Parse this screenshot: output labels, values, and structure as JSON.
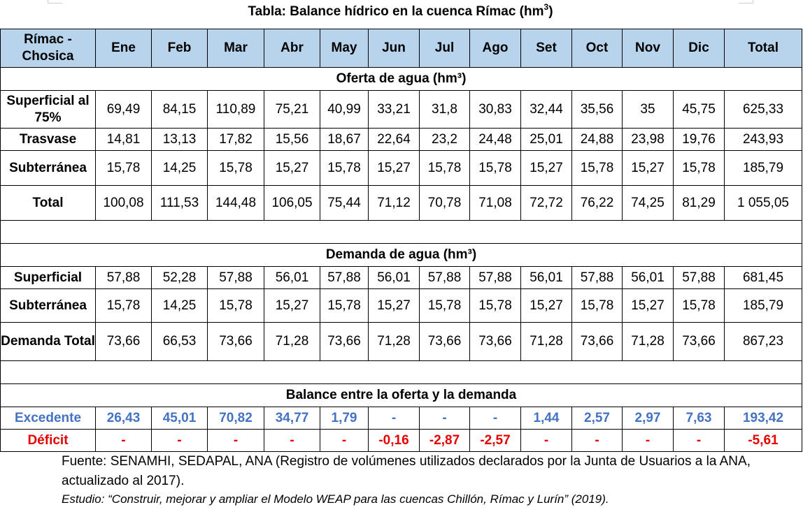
{
  "title": {
    "text": "Tabla: Balance hídrico en la cuenca Rímac (hm",
    "sup": "3",
    "close": ")"
  },
  "header": {
    "corner_label": "Rímac - Chosica",
    "months": [
      "Ene",
      "Feb",
      "Mar",
      "Abr",
      "May",
      "Jun",
      "Jul",
      "Ago",
      "Set",
      "Oct",
      "Nov",
      "Dic"
    ],
    "total_label": "Total"
  },
  "oferta": {
    "title": "Oferta de agua (hm³)",
    "rows": [
      {
        "label": "Superficial al 75%",
        "values": [
          "69,49",
          "84,15",
          "110,89",
          "75,21",
          "40,99",
          "33,21",
          "31,8",
          "30,83",
          "32,44",
          "35,56",
          "35",
          "45,75",
          "625,33"
        ]
      },
      {
        "label": "Trasvase",
        "values": [
          "14,81",
          "13,13",
          "17,82",
          "15,56",
          "18,67",
          "22,64",
          "23,2",
          "24,48",
          "25,01",
          "24,88",
          "23,98",
          "19,76",
          "243,93"
        ]
      },
      {
        "label": "Subterránea",
        "values": [
          "15,78",
          "14,25",
          "15,78",
          "15,27",
          "15,78",
          "15,27",
          "15,78",
          "15,78",
          "15,27",
          "15,78",
          "15,27",
          "15,78",
          "185,79"
        ]
      },
      {
        "label": "Total",
        "values": [
          "100,08",
          "111,53",
          "144,48",
          "106,05",
          "75,44",
          "71,12",
          "70,78",
          "71,08",
          "72,72",
          "76,22",
          "74,25",
          "81,29",
          "1 055,05"
        ]
      }
    ]
  },
  "demanda": {
    "title": "Demanda de agua (hm³)",
    "rows": [
      {
        "label": "Superficial",
        "values": [
          "57,88",
          "52,28",
          "57,88",
          "56,01",
          "57,88",
          "56,01",
          "57,88",
          "57,88",
          "56,01",
          "57,88",
          "56,01",
          "57,88",
          "681,45"
        ]
      },
      {
        "label": "Subterránea",
        "values": [
          "15,78",
          "14,25",
          "15,78",
          "15,27",
          "15,78",
          "15,27",
          "15,78",
          "15,78",
          "15,27",
          "15,78",
          "15,27",
          "15,78",
          "185,79"
        ]
      },
      {
        "label": "Demanda Total",
        "values": [
          "73,66",
          "66,53",
          "73,66",
          "71,28",
          "73,66",
          "71,28",
          "73,66",
          "73,66",
          "71,28",
          "73,66",
          "71,28",
          "73,66",
          "867,23"
        ]
      }
    ]
  },
  "balance": {
    "title": "Balance entre la oferta y la demanda",
    "excedente": {
      "label": "Excedente",
      "values": [
        "26,43",
        "45,01",
        "70,82",
        "34,77",
        "1,79",
        "-",
        "-",
        "-",
        "1,44",
        "2,57",
        "2,97",
        "7,63",
        "193,42"
      ]
    },
    "deficit": {
      "label": "Déficit",
      "values": [
        "-",
        "-",
        "-",
        "-",
        "-",
        "-0,16",
        "-2,87",
        "-2,57",
        "-",
        "-",
        "-",
        "-",
        "-5,61"
      ]
    }
  },
  "colors": {
    "header_bg": "#b8d4ec",
    "excedente": "#4472c4",
    "deficit": "#e60000"
  },
  "footer": {
    "source": "Fuente: SENAMHI, SEDAPAL, ANA (Registro de volúmenes utilizados declarados por la Junta de Usuarios a la ANA, actualizado al 2017).",
    "study": "Estudio: “Construir, mejorar y ampliar el Modelo WEAP para las cuencas Chillón, Rímac y Lurín” (2019)."
  }
}
